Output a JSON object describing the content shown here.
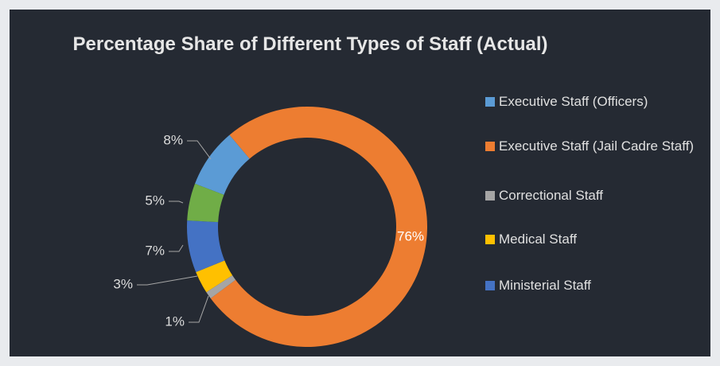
{
  "chart_data": {
    "type": "donut",
    "title": "Percentage Share of Different Types of Staff (Actual)",
    "categories": [
      "Executive Staff (Officers)",
      "Executive Staff (Jail Cadre Staff)",
      "Correctional Staff",
      "Medical Staff",
      "Ministerial Staff",
      null
    ],
    "values": [
      8,
      76,
      1,
      3,
      7,
      5
    ],
    "value_labels": [
      "8%",
      "76%",
      "1%",
      "3%",
      "7%",
      "5%"
    ],
    "colors": [
      "#5b9bd5",
      "#ed7d31",
      "#a5a5a5",
      "#ffc000",
      "#4472c4",
      "#70ad47"
    ],
    "legend": "right"
  }
}
